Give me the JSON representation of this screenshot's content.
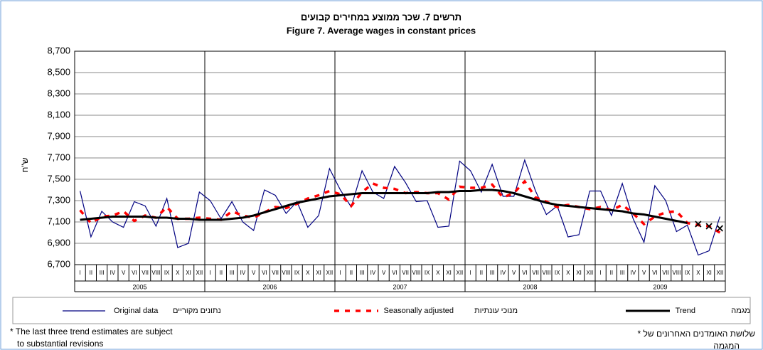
{
  "chart_data": {
    "type": "line",
    "title_he": "תרשים 7. שכר ממוצע במחירים קבועים",
    "title": "Figure 7. Average wages in constant prices",
    "y_label": "ש\"ח",
    "categories": [
      "I",
      "II",
      "III",
      "IV",
      "V",
      "VI",
      "VII",
      "VIII",
      "IX",
      "X",
      "XI",
      "XII",
      "I",
      "II",
      "III",
      "IV",
      "V",
      "VI",
      "VII",
      "VIII",
      "IX",
      "X",
      "XI",
      "XII",
      "I",
      "II",
      "III",
      "IV",
      "V",
      "VI",
      "VII",
      "VIII",
      "IX",
      "X",
      "XI",
      "XII",
      "I",
      "II",
      "III",
      "IV",
      "V",
      "VI",
      "VII",
      "VIII",
      "IX",
      "X",
      "XI",
      "XII",
      "I",
      "II",
      "III",
      "IV",
      "V",
      "VI",
      "VII",
      "VIII",
      "IX",
      "X",
      "XI",
      "XII"
    ],
    "years": [
      "2005",
      "2006",
      "2007",
      "2008",
      "2009"
    ],
    "ylim": [
      6700,
      8700
    ],
    "yticks": [
      {
        "value": 6700,
        "label": "6,700"
      },
      {
        "value": 6900,
        "label": "6,900"
      },
      {
        "value": 7100,
        "label": "7,100"
      },
      {
        "value": 7300,
        "label": "7,300"
      },
      {
        "value": 7500,
        "label": "7,500"
      },
      {
        "value": 7700,
        "label": "7,700"
      },
      {
        "value": 7900,
        "label": "7,900"
      },
      {
        "value": 8100,
        "label": "8,100"
      },
      {
        "value": 8300,
        "label": "8,300"
      },
      {
        "value": 8500,
        "label": "8,500"
      },
      {
        "value": 8700,
        "label": "8,700"
      }
    ],
    "grid": true,
    "series": [
      {
        "name": "Original data",
        "name_he": "נתונים מקוריים",
        "color": "#000080",
        "style": "solid",
        "values": [
          7390,
          6960,
          7200,
          7100,
          7050,
          7290,
          7250,
          7060,
          7320,
          6860,
          6900,
          7380,
          7300,
          7130,
          7290,
          7100,
          7020,
          7400,
          7350,
          7180,
          7290,
          7050,
          7160,
          7600,
          7400,
          7240,
          7580,
          7380,
          7320,
          7620,
          7470,
          7290,
          7300,
          7050,
          7060,
          7670,
          7580,
          7380,
          7640,
          7340,
          7340,
          7680,
          7390,
          7170,
          7250,
          6960,
          6980,
          7390,
          7390,
          7160,
          7460,
          7130,
          6910,
          7440,
          7300,
          7010,
          7070,
          6790,
          6830,
          7150
        ]
      },
      {
        "name": "Seasonally adjusted",
        "name_he": "מנוכי עונתיות",
        "color": "#ff0000",
        "style": "dashed",
        "values": [
          7210,
          7090,
          7150,
          7160,
          7200,
          7110,
          7160,
          7140,
          7240,
          7130,
          7130,
          7140,
          7130,
          7120,
          7200,
          7160,
          7140,
          7190,
          7240,
          7230,
          7270,
          7320,
          7350,
          7390,
          7360,
          7250,
          7380,
          7460,
          7420,
          7410,
          7370,
          7380,
          7370,
          7370,
          7310,
          7430,
          7420,
          7420,
          7450,
          7330,
          7370,
          7480,
          7330,
          7290,
          7240,
          7260,
          7240,
          7220,
          7240,
          7210,
          7260,
          7180,
          7080,
          7150,
          7190,
          7200,
          7090,
          7070,
          7060,
          7000
        ]
      },
      {
        "name": "Trend",
        "name_he": "מגמה",
        "color": "#000000",
        "style": "thick",
        "marked_last": 3,
        "values": [
          7120,
          7130,
          7140,
          7150,
          7150,
          7150,
          7150,
          7140,
          7140,
          7130,
          7130,
          7120,
          7120,
          7120,
          7130,
          7140,
          7160,
          7190,
          7220,
          7250,
          7280,
          7300,
          7320,
          7340,
          7350,
          7360,
          7370,
          7370,
          7370,
          7370,
          7370,
          7370,
          7370,
          7380,
          7380,
          7390,
          7390,
          7400,
          7400,
          7390,
          7370,
          7340,
          7310,
          7280,
          7260,
          7250,
          7240,
          7230,
          7220,
          7210,
          7200,
          7180,
          7170,
          7150,
          7130,
          7110,
          7090,
          7080,
          7060,
          7040
        ]
      }
    ],
    "footnote": [
      "* The last three trend estimates are subject",
      "to substantial revisions"
    ],
    "footnote_he": [
      "* שלושת האומדנים האחרונים של",
      "המגמה"
    ]
  }
}
